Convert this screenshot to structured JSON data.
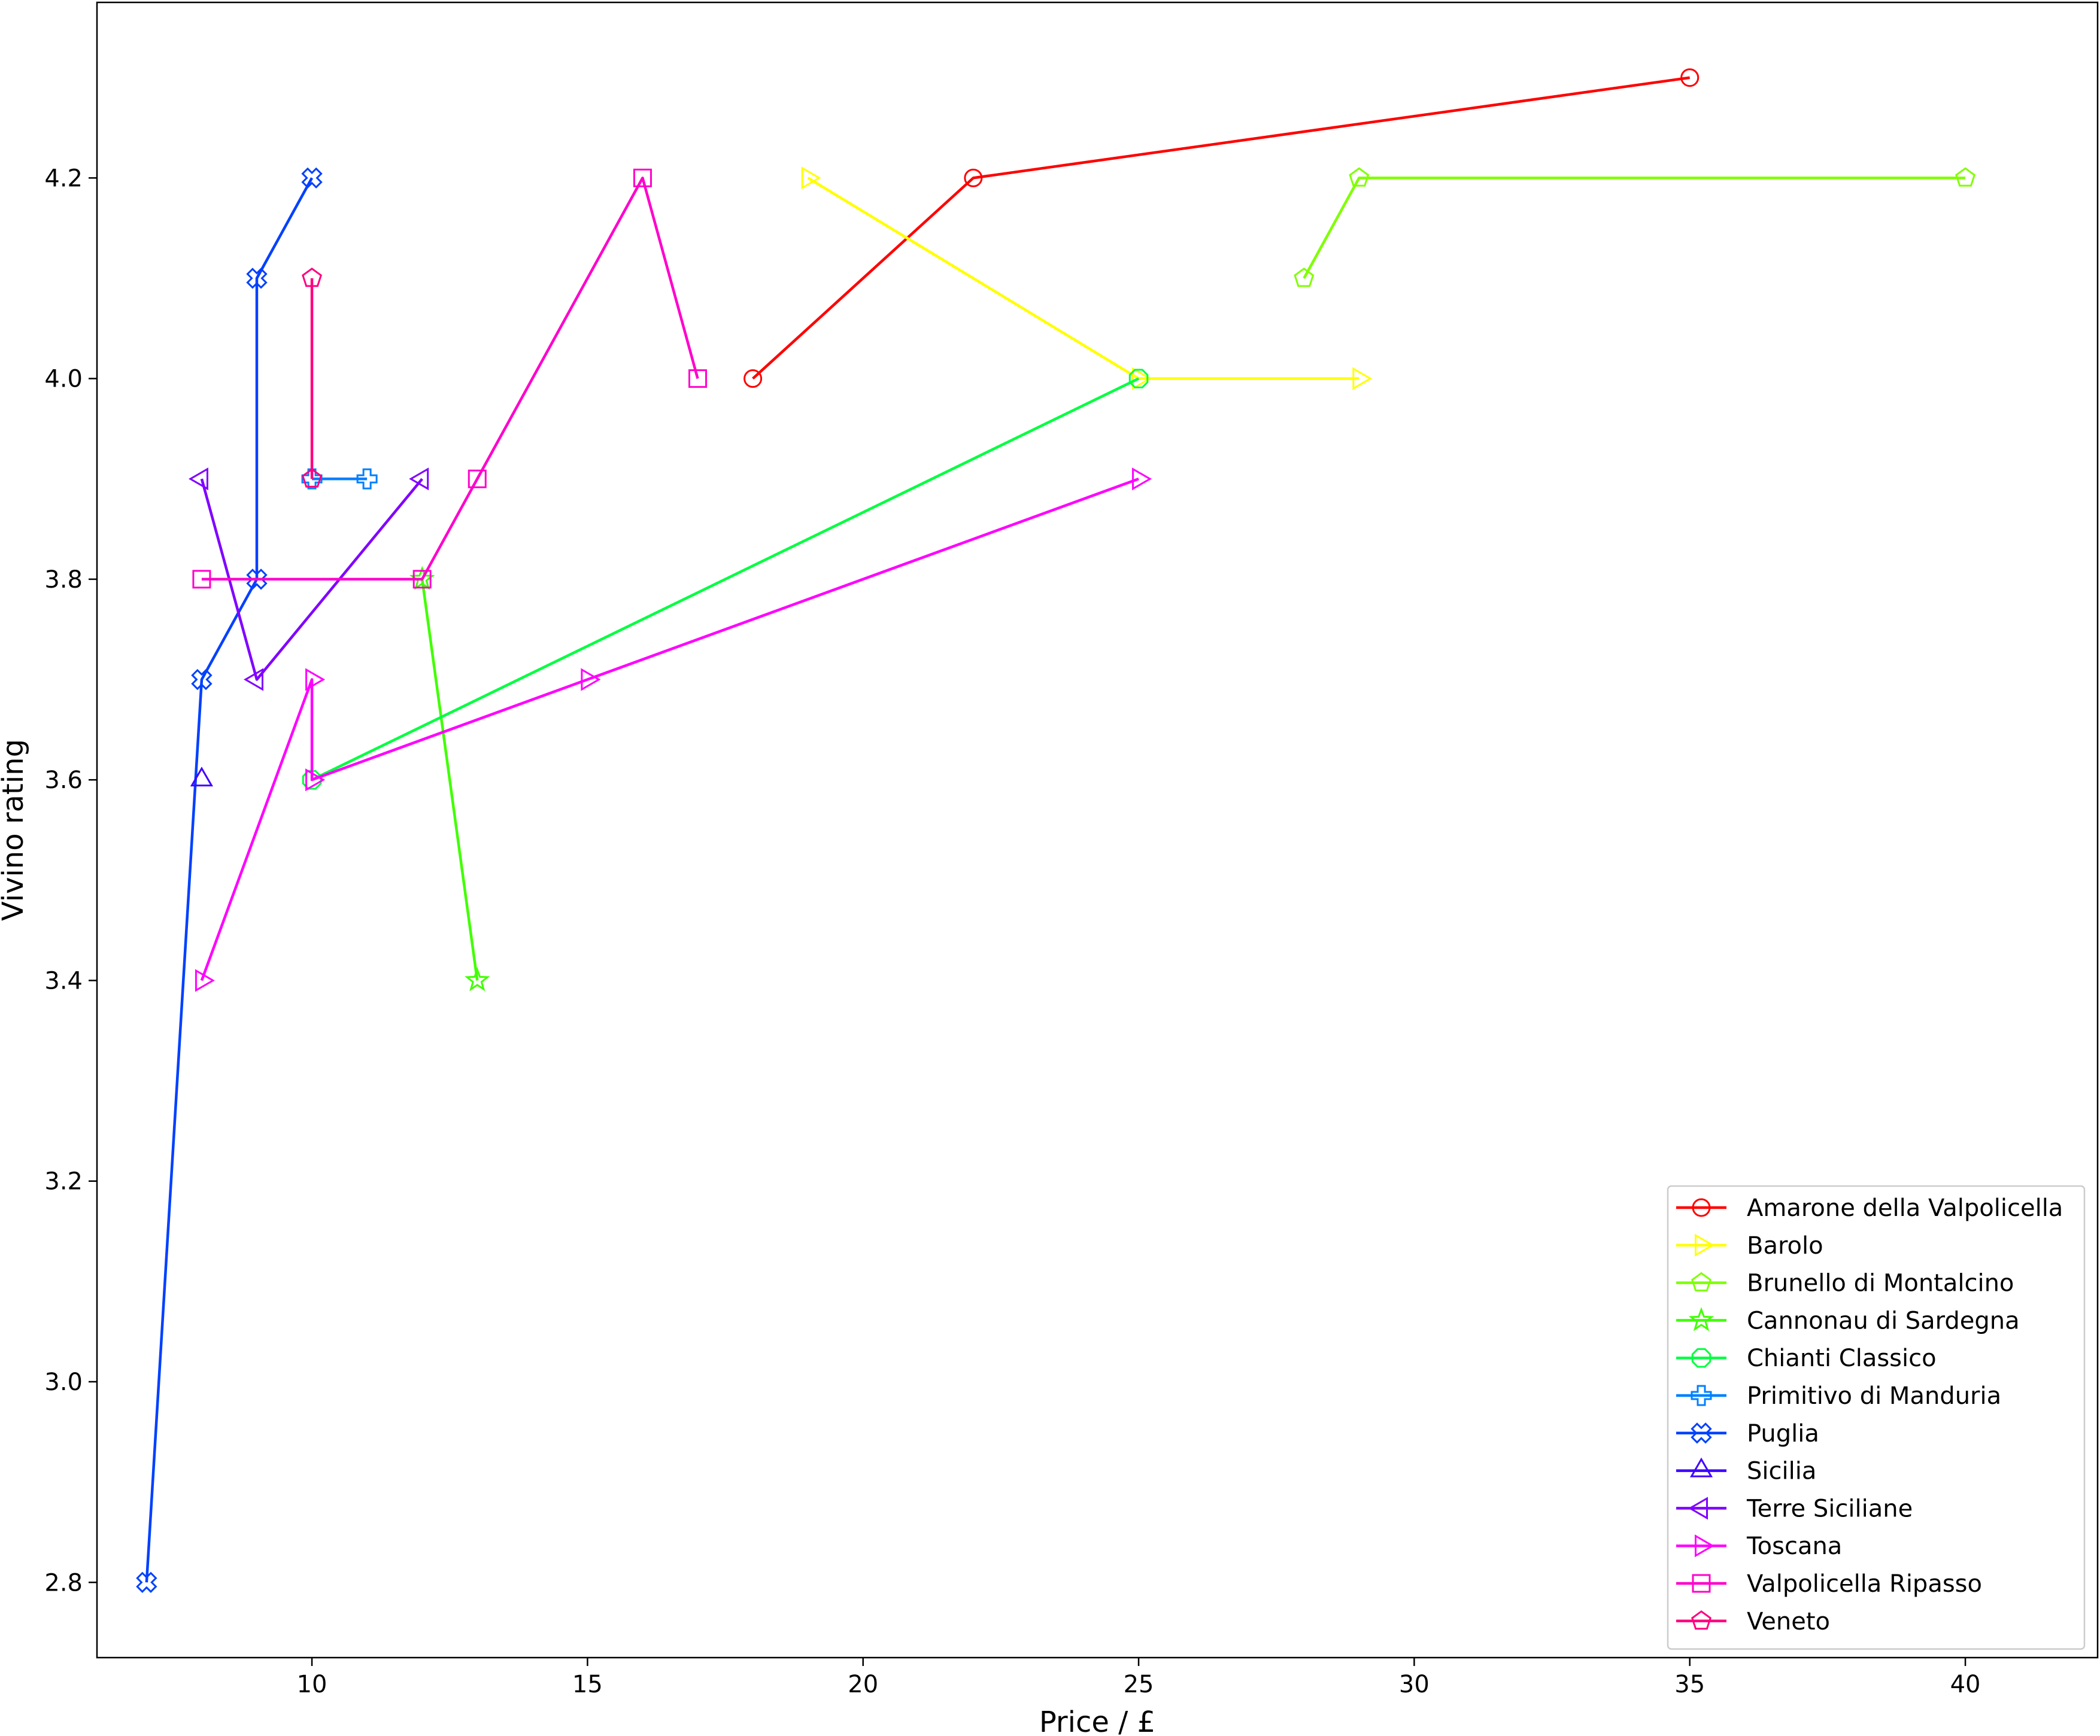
{
  "chart_data": {
    "type": "line",
    "title": "",
    "xlabel": "Price / £",
    "ylabel": "Vivino rating",
    "xlim": [
      6.1,
      42.4
    ],
    "ylim": [
      2.725,
      4.375
    ],
    "xticks": [
      10,
      15,
      20,
      25,
      30,
      35,
      40
    ],
    "yticks": [
      2.8,
      3.0,
      3.2,
      3.4,
      3.6,
      3.8,
      4.0,
      4.2
    ],
    "xtick_labels": [
      "10",
      "15",
      "20",
      "25",
      "30",
      "35",
      "40"
    ],
    "ytick_labels": [
      "2.8",
      "3.0",
      "3.2",
      "3.4",
      "3.6",
      "3.8",
      "4.0",
      "4.2"
    ],
    "grid": false,
    "legend_position": "lower right",
    "series": [
      {
        "name": "Amarone della Valpolicella",
        "color": "#ff0000",
        "marker": "circle",
        "x": [
          18,
          22,
          35
        ],
        "y": [
          4.0,
          4.2,
          4.3
        ]
      },
      {
        "name": "Barolo",
        "color": "#ffff00",
        "marker": "triangle-right",
        "x": [
          19,
          25,
          29
        ],
        "y": [
          4.2,
          4.0,
          4.0
        ]
      },
      {
        "name": "Brunello di Montalcino",
        "color": "#80ff00",
        "marker": "pentagon",
        "x": [
          28,
          29,
          40
        ],
        "y": [
          4.1,
          4.2,
          4.2
        ]
      },
      {
        "name": "Cannonau di Sardegna",
        "color": "#40ff00",
        "marker": "star",
        "x": [
          12,
          13
        ],
        "y": [
          3.8,
          3.4
        ]
      },
      {
        "name": "Chianti Classico",
        "color": "#00ff40",
        "marker": "octagon",
        "x": [
          10,
          25
        ],
        "y": [
          3.6,
          4.0
        ]
      },
      {
        "name": "Primitivo di Manduria",
        "color": "#0080ff",
        "marker": "plus",
        "x": [
          10,
          11
        ],
        "y": [
          3.9,
          3.9
        ]
      },
      {
        "name": "Puglia",
        "color": "#0040ff",
        "marker": "x",
        "x": [
          7,
          8,
          9,
          9,
          10
        ],
        "y": [
          2.8,
          3.7,
          3.8,
          4.1,
          4.2
        ]
      },
      {
        "name": "Sicilia",
        "color": "#4000ff",
        "marker": "triangle-up",
        "x": [
          8
        ],
        "y": [
          3.6
        ]
      },
      {
        "name": "Terre Siciliane",
        "color": "#8000ff",
        "marker": "triangle-left",
        "x": [
          8,
          9,
          12
        ],
        "y": [
          3.9,
          3.7,
          3.9
        ]
      },
      {
        "name": "Toscana",
        "color": "#ff00ff",
        "marker": "triangle-right",
        "x": [
          8,
          10,
          10,
          15,
          25
        ],
        "y": [
          3.4,
          3.7,
          3.6,
          3.7,
          3.9
        ]
      },
      {
        "name": "Valpolicella Ripasso",
        "color": "#ff00cc",
        "marker": "square",
        "x": [
          8,
          12,
          13,
          16,
          17
        ],
        "y": [
          3.8,
          3.8,
          3.9,
          4.2,
          4.0
        ]
      },
      {
        "name": "Veneto",
        "color": "#ff0080",
        "marker": "pentagon",
        "x": [
          10,
          10
        ],
        "y": [
          3.9,
          4.1
        ]
      }
    ]
  }
}
